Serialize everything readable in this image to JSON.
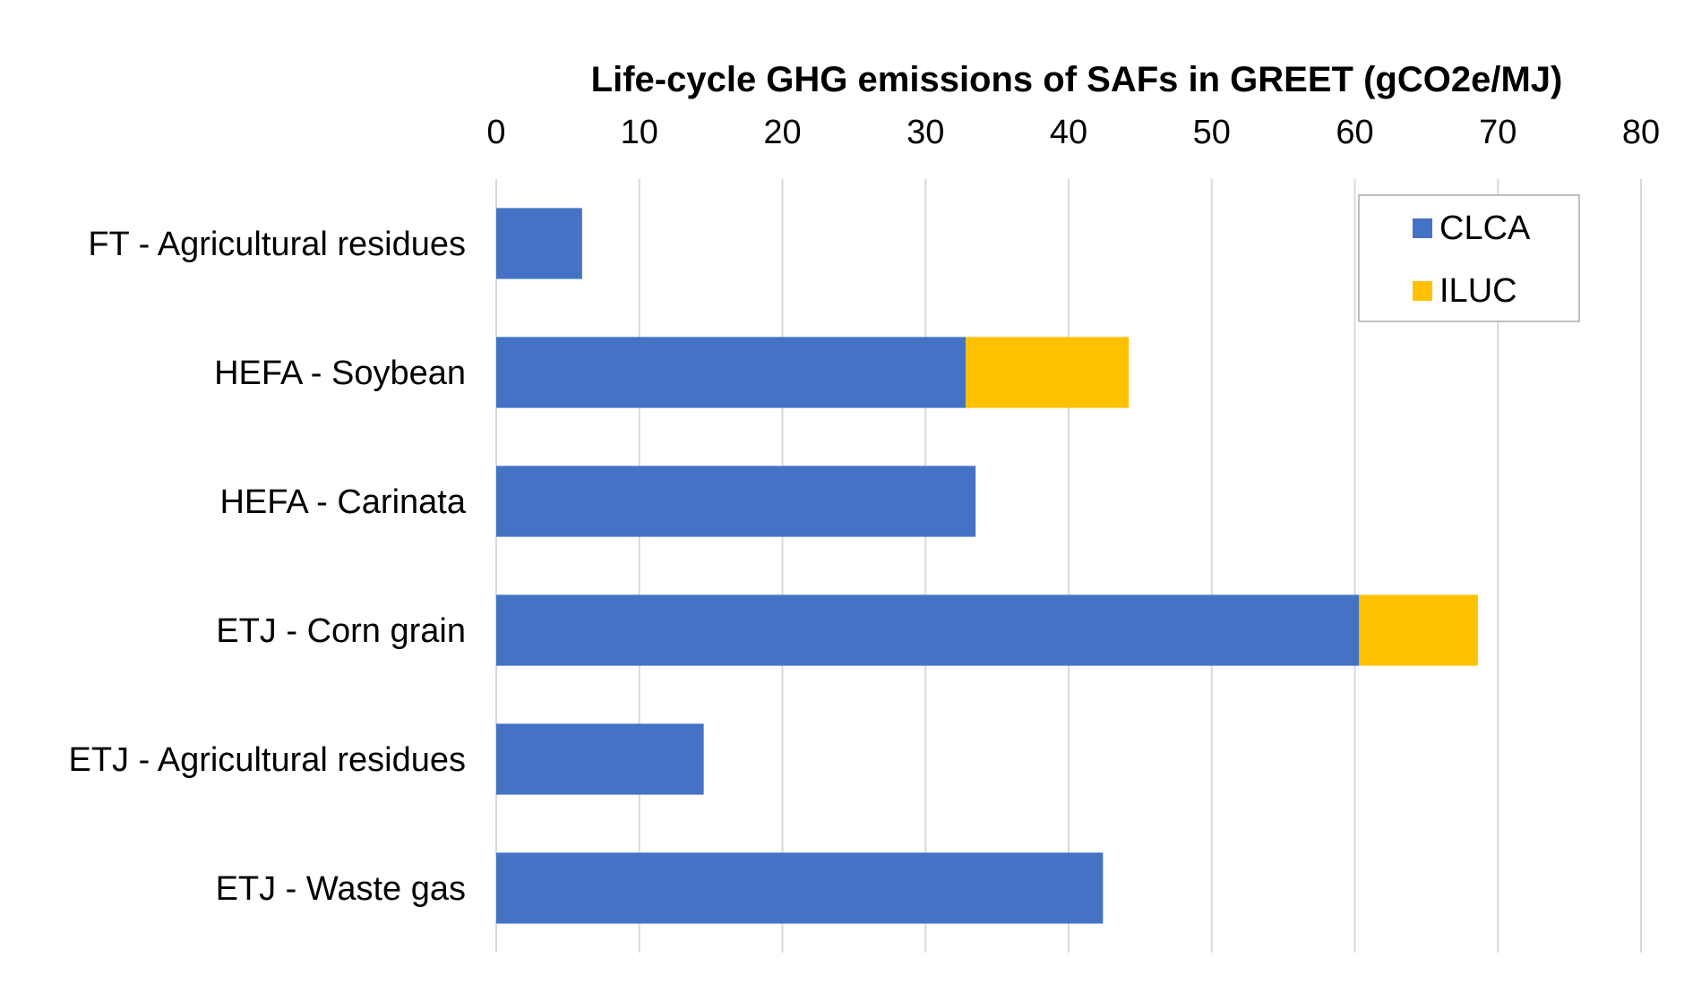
{
  "chart_data": {
    "type": "bar",
    "orientation": "horizontal",
    "stacked": true,
    "title": "Life-cycle GHG emissions of SAFs in GREET (gCO2e/MJ)",
    "xlabel": "",
    "ylabel": "",
    "xlim": [
      0,
      80
    ],
    "x_ticks": [
      "0",
      "10",
      "20",
      "30",
      "40",
      "50",
      "60",
      "70",
      "80"
    ],
    "x_axis_position": "top",
    "grid": true,
    "legend_position": "top-right",
    "categories": [
      "FT - Agricultural residues",
      "HEFA - Soybean",
      "HEFA - Carinata",
      "ETJ - Corn grain",
      "ETJ - Agricultural residues",
      "ETJ - Waste gas"
    ],
    "series": [
      {
        "name": "CLCA",
        "color": "#4472c4",
        "values": [
          6,
          32.8,
          33.5,
          60.3,
          14.5,
          42.4
        ]
      },
      {
        "name": "ILUC",
        "color": "#ffc000",
        "values": [
          0,
          11.4,
          0,
          8.3,
          0,
          0
        ]
      }
    ]
  }
}
